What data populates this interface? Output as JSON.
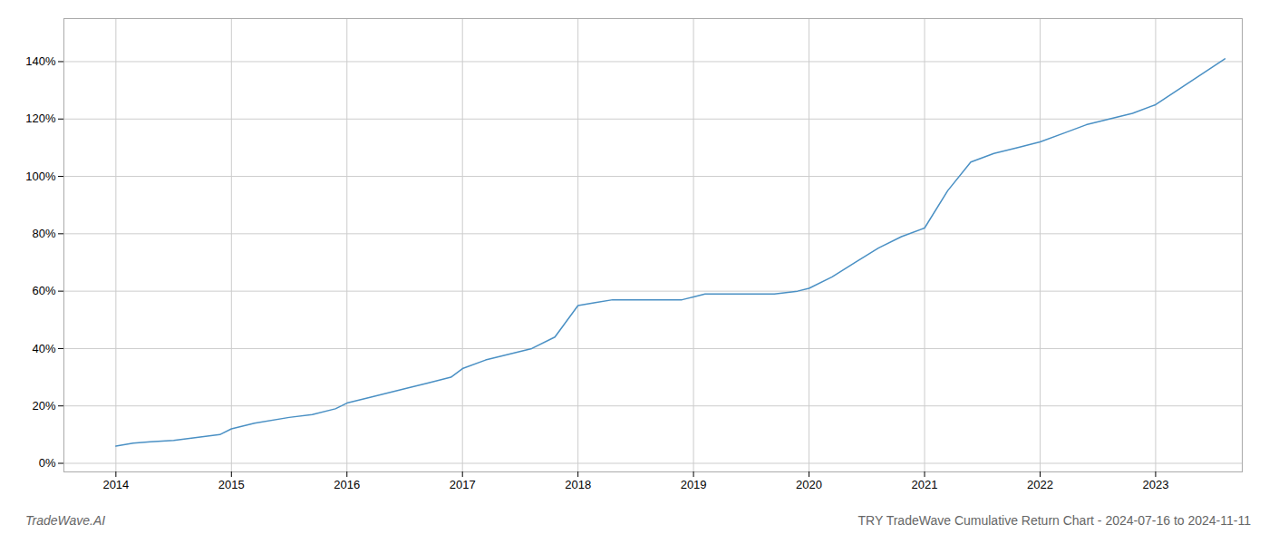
{
  "chart_data": {
    "type": "line",
    "title": "TRY TradeWave Cumulative Return Chart - 2024-07-16 to 2024-11-11",
    "annotations": [
      "TradeWave.AI"
    ],
    "x": [
      2014.0,
      2014.15,
      2014.3,
      2014.5,
      2014.7,
      2014.9,
      2015.0,
      2015.2,
      2015.5,
      2015.7,
      2015.9,
      2016.0,
      2016.2,
      2016.5,
      2016.7,
      2016.9,
      2017.0,
      2017.2,
      2017.4,
      2017.6,
      2017.8,
      2018.0,
      2018.15,
      2018.3,
      2018.5,
      2018.7,
      2018.9,
      2019.0,
      2019.1,
      2019.3,
      2019.5,
      2019.7,
      2019.9,
      2020.0,
      2020.2,
      2020.4,
      2020.6,
      2020.8,
      2021.0,
      2021.2,
      2021.4,
      2021.6,
      2021.8,
      2022.0,
      2022.2,
      2022.4,
      2022.6,
      2022.8,
      2023.0,
      2023.3,
      2023.6
    ],
    "values": [
      6,
      7,
      7.5,
      8,
      9,
      10,
      12,
      14,
      16,
      17,
      19,
      21,
      23,
      26,
      28,
      30,
      33,
      36,
      38,
      40,
      44,
      55,
      56,
      57,
      57,
      57,
      57,
      58,
      59,
      59,
      59,
      59,
      60,
      61,
      65,
      70,
      75,
      79,
      82,
      95,
      105,
      108,
      110,
      112,
      115,
      118,
      120,
      122,
      125,
      133,
      141
    ],
    "color": "#4a90c4",
    "xlim": [
      2013.55,
      2023.75
    ],
    "ylim": [
      -3,
      155
    ],
    "xticks": [
      2014,
      2015,
      2016,
      2017,
      2018,
      2019,
      2020,
      2021,
      2022,
      2023
    ],
    "yticks": [
      {
        "value": 0,
        "label": "0%"
      },
      {
        "value": 20,
        "label": "20%"
      },
      {
        "value": 40,
        "label": "40%"
      },
      {
        "value": 60,
        "label": "60%"
      },
      {
        "value": 80,
        "label": "80%"
      },
      {
        "value": 100,
        "label": "100%"
      },
      {
        "value": 120,
        "label": "120%"
      },
      {
        "value": 140,
        "label": "140%"
      }
    ],
    "grid": true
  }
}
